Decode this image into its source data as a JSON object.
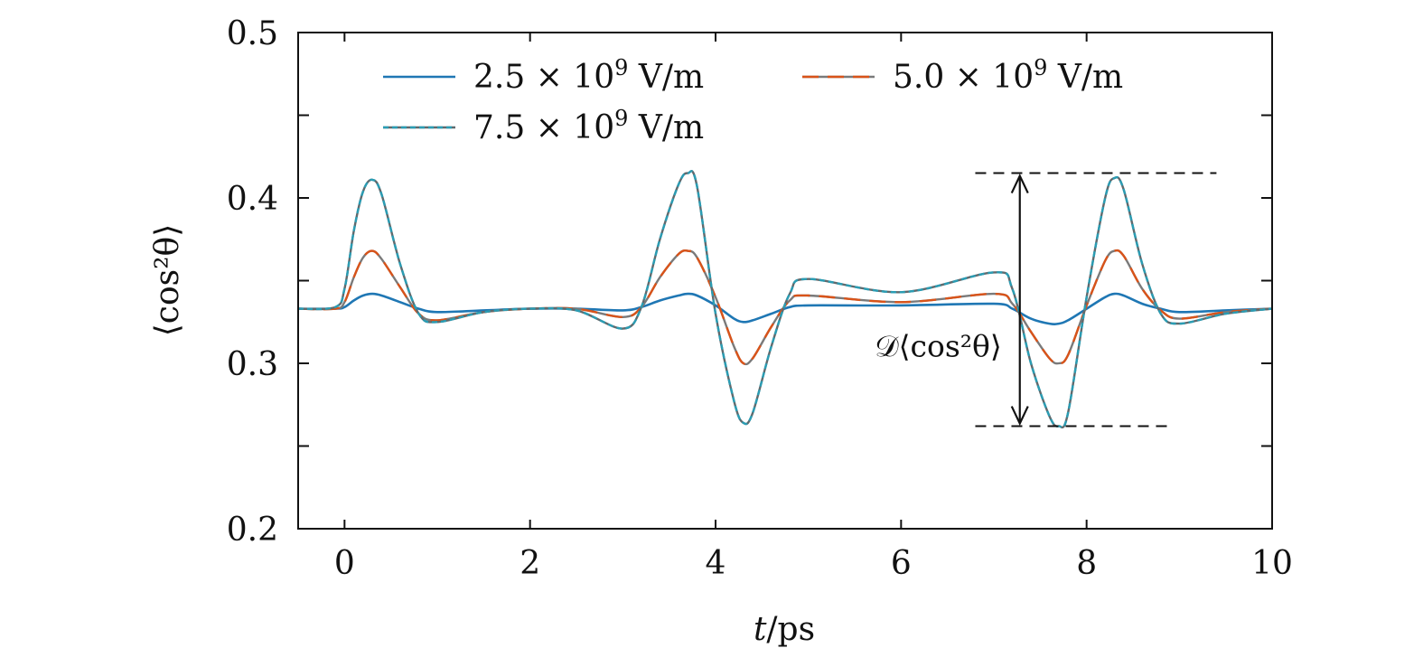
{
  "chart_data": {
    "type": "line",
    "xlabel": "t/ps",
    "ylabel": "⟨cos²θ⟩",
    "xlim": [
      -0.5,
      10
    ],
    "ylim": [
      0.2,
      0.5
    ],
    "x_ticks": [
      0,
      2,
      4,
      6,
      8,
      10
    ],
    "x_tick_labels": [
      "0",
      "2",
      "4",
      "6",
      "8",
      "10"
    ],
    "y_ticks": [
      0.2,
      0.3,
      0.4,
      0.5
    ],
    "y_tick_labels": [
      "0.2",
      "0.3",
      "0.4",
      "0.5"
    ],
    "y_minor_ticks": [
      0.25,
      0.35,
      0.45
    ],
    "grid": false,
    "legend_position": "top",
    "series": [
      {
        "name": "2.5 × 10⁹ V/m",
        "legend_name": {
          "mantissa": "2.5",
          "exponent": "9",
          "unit": "V/m"
        },
        "color": "#1f77b4",
        "style": "solid",
        "x": [
          -0.5,
          -0.1,
          0.0,
          0.1,
          0.2,
          0.3,
          0.4,
          0.6,
          0.8,
          1.0,
          1.5,
          2.0,
          2.5,
          3.0,
          3.2,
          3.4,
          3.6,
          3.7,
          3.8,
          4.0,
          4.2,
          4.3,
          4.4,
          4.6,
          4.8,
          5.0,
          6.0,
          7.0,
          7.2,
          7.4,
          7.6,
          7.7,
          7.8,
          8.0,
          8.2,
          8.3,
          8.4,
          8.6,
          8.8,
          9.0,
          9.5,
          10.0
        ],
        "y": [
          0.333,
          0.333,
          0.334,
          0.338,
          0.341,
          0.342,
          0.341,
          0.337,
          0.333,
          0.331,
          0.332,
          0.333,
          0.333,
          0.332,
          0.334,
          0.338,
          0.341,
          0.342,
          0.341,
          0.335,
          0.327,
          0.325,
          0.326,
          0.33,
          0.334,
          0.335,
          0.335,
          0.336,
          0.333,
          0.327,
          0.324,
          0.324,
          0.326,
          0.333,
          0.34,
          0.342,
          0.341,
          0.336,
          0.333,
          0.331,
          0.332,
          0.333
        ]
      },
      {
        "name": "5.0 × 10⁹ V/m",
        "legend_name": {
          "mantissa": "5.0",
          "exponent": "9",
          "unit": "V/m"
        },
        "color": "#d95319",
        "style": "dashed",
        "x": [
          -0.5,
          -0.1,
          0.0,
          0.1,
          0.2,
          0.3,
          0.4,
          0.6,
          0.8,
          1.0,
          1.5,
          2.0,
          2.5,
          3.0,
          3.2,
          3.4,
          3.6,
          3.7,
          3.8,
          4.0,
          4.2,
          4.3,
          4.4,
          4.6,
          4.8,
          5.0,
          6.0,
          7.0,
          7.2,
          7.4,
          7.6,
          7.7,
          7.8,
          8.0,
          8.2,
          8.3,
          8.4,
          8.6,
          8.8,
          9.0,
          9.5,
          10.0
        ],
        "y": [
          0.333,
          0.333,
          0.337,
          0.352,
          0.364,
          0.368,
          0.363,
          0.346,
          0.33,
          0.326,
          0.331,
          0.333,
          0.333,
          0.328,
          0.334,
          0.352,
          0.366,
          0.368,
          0.364,
          0.34,
          0.31,
          0.3,
          0.303,
          0.322,
          0.338,
          0.341,
          0.337,
          0.342,
          0.336,
          0.319,
          0.303,
          0.3,
          0.305,
          0.335,
          0.362,
          0.368,
          0.365,
          0.345,
          0.332,
          0.327,
          0.331,
          0.333
        ]
      },
      {
        "name": "7.5 × 10⁹ V/m",
        "legend_name": {
          "mantissa": "7.5",
          "exponent": "9",
          "unit": "V/m"
        },
        "color": "#2a9db4",
        "style": "dotted",
        "x": [
          -0.5,
          -0.1,
          0.0,
          0.1,
          0.2,
          0.3,
          0.4,
          0.6,
          0.8,
          1.0,
          1.5,
          2.0,
          2.5,
          3.0,
          3.2,
          3.4,
          3.6,
          3.7,
          3.8,
          4.0,
          4.2,
          4.3,
          4.4,
          4.6,
          4.8,
          5.0,
          6.0,
          7.0,
          7.2,
          7.4,
          7.6,
          7.7,
          7.8,
          8.0,
          8.2,
          8.3,
          8.4,
          8.6,
          8.8,
          9.0,
          9.5,
          10.0
        ],
        "y": [
          0.333,
          0.334,
          0.345,
          0.38,
          0.404,
          0.411,
          0.402,
          0.36,
          0.33,
          0.325,
          0.331,
          0.333,
          0.332,
          0.321,
          0.334,
          0.375,
          0.408,
          0.415,
          0.407,
          0.33,
          0.277,
          0.264,
          0.27,
          0.31,
          0.342,
          0.351,
          0.343,
          0.355,
          0.345,
          0.3,
          0.268,
          0.262,
          0.27,
          0.34,
          0.4,
          0.412,
          0.405,
          0.36,
          0.33,
          0.324,
          0.33,
          0.333
        ]
      }
    ],
    "annotation": {
      "label": "𝒟⟨cos²θ⟩",
      "y_top": 0.415,
      "y_bottom": 0.262,
      "x_arrow": 7.28,
      "x_top_start": 6.8,
      "x_top_end": 9.4,
      "x_bottom_start": 6.8,
      "x_bottom_end": 8.9
    }
  }
}
